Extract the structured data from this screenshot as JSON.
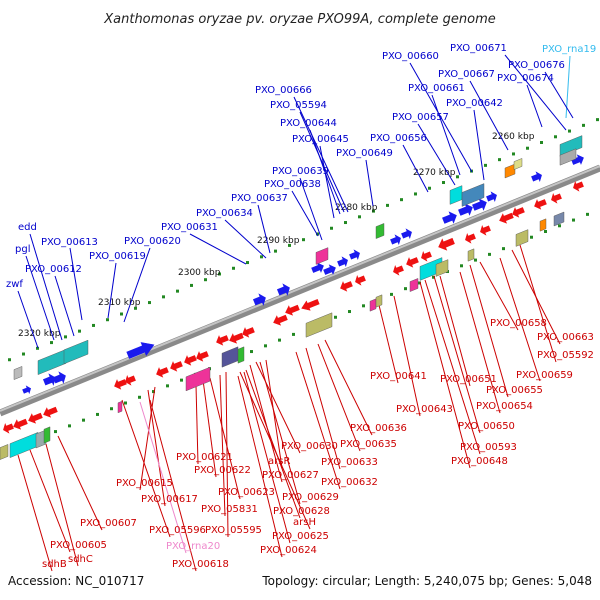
{
  "title": "Xanthomonas oryzae pv. oryzae PXO99A, complete genome",
  "footer": {
    "accession": "Accession: NC_010717",
    "summary": "Topology: circular; Length: 5,240,075 bp; Genes: 5,048"
  },
  "colors": {
    "plus_label": "#0000cc",
    "minus_label": "#cc0000",
    "rna_plus_label": "#33bbee",
    "rna_minus_label": "#ee88cc",
    "backbone": "#777777",
    "tick_dot": "#228822"
  },
  "ticks": [
    {
      "label": "2260 kbp"
    },
    {
      "label": "2270 kbp"
    },
    {
      "label": "2280 kbp"
    },
    {
      "label": "2290 kbp"
    },
    {
      "label": "2300 kbp"
    },
    {
      "label": "2310 kbp"
    },
    {
      "label": "2320 kbp"
    }
  ],
  "plus_labels": [
    "PXO_rna19",
    "PXO_00671",
    "PXO_00676",
    "PXO_00660",
    "PXO_00667",
    "PXO_00674",
    "PXO_00661",
    "PXO_00666",
    "PXO_00642",
    "PXO_05594",
    "PXO_00657",
    "PXO_00644",
    "PXO_00645",
    "PXO_00656",
    "PXO_00649",
    "PXO_00639",
    "PXO_00638",
    "PXO_00637",
    "PXO_00634",
    "PXO_00631",
    "edd",
    "PXO_00613",
    "PXO_00620",
    "pgl",
    "PXO_00619",
    "PXO_00612",
    "zwf"
  ],
  "minus_labels": [
    "PXO_00658",
    "PXO_00663",
    "PXO_05592",
    "PXO_00659",
    "PXO_00641",
    "PXO_00651",
    "PXO_00655",
    "PXO_00643",
    "PXO_00654",
    "PXO_00636",
    "PXO_00650",
    "PXO_00635",
    "PXO_00593",
    "PXO_00630",
    "PXO_00621",
    "PXO_00633",
    "PXO_00648",
    "arsR",
    "PXO_00622",
    "PXO_00627",
    "PXO_00632",
    "PXO_00615",
    "PXO_00623",
    "PXO_00629",
    "PXO_00617",
    "PXO_05831",
    "PXO_00628",
    "PXO_00607",
    "arsH",
    "PXO_05596",
    "PXO_05595",
    "PXO_00625",
    "PXO_00605",
    "sdhC",
    "PXO_rna20",
    "PXO_00624",
    "sdhB",
    "PXO_00618"
  ]
}
